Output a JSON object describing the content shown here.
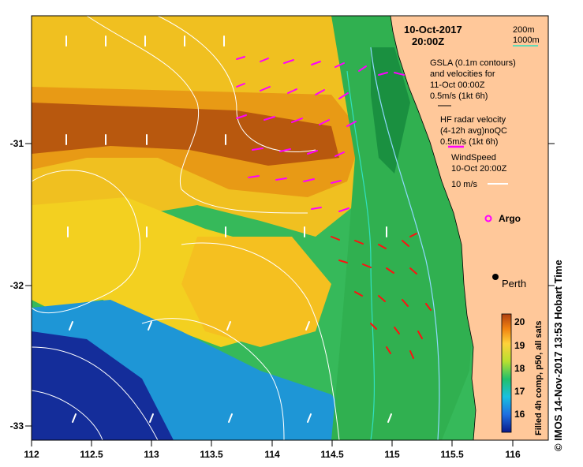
{
  "map": {
    "date_line1": "10-Oct-2017",
    "date_line2": "20:00Z",
    "depth_200": "200m",
    "depth_1000": "1000m",
    "gsla_line1": "GSLA (0.1m contours)",
    "gsla_line2": "and velocities for",
    "gsla_line3": "11-Oct 00:00Z",
    "gsla_scale": "0.5m/s (1kt 6h)",
    "hf_line1": "HF radar velocity",
    "hf_line2": "(4-12h avg)noQC",
    "hf_scale": "0.5m/s (1kt 6h)",
    "wind_line1": "WindSpeed",
    "wind_line2": "10-Oct 20:00Z",
    "wind_scale": "10 m/s",
    "argo_label": "Argo",
    "city_label": "Perth",
    "credit": "© IMOS 14-Nov-2017 13:53 Hobart Time",
    "x_ticks": [
      "112",
      "112.5",
      "113",
      "113.5",
      "114",
      "114.5",
      "115",
      "115.5",
      "116"
    ],
    "y_ticks": [
      "-31",
      "-32",
      "-33"
    ]
  },
  "colorbar": {
    "title": "Filled 4h comp, p50, all sats",
    "ticks": [
      "20",
      "19",
      "18",
      "17",
      "16"
    ]
  },
  "colors": {
    "land": "#ffc89a",
    "hf_vectors": "#ff00ff",
    "wind_vectors": "#ffffff",
    "gsla_contours": "#ffffff",
    "depth_200": "#8fd9ff",
    "depth_1000": "#30e0c0"
  }
}
